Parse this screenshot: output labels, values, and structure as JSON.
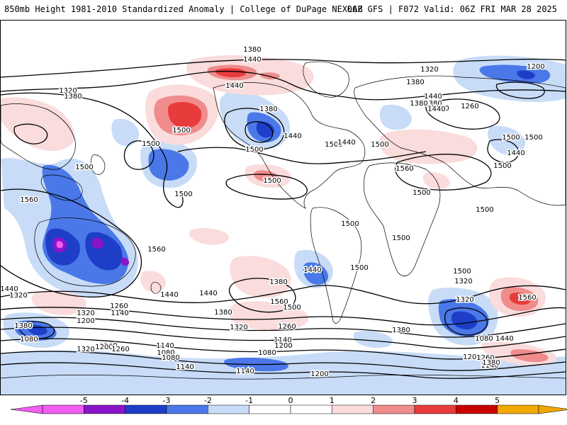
{
  "header": {
    "title_left": "850mb Height 1981-2010 Standardized Anomaly | College of DuPage NEXLAB",
    "title_right": "06Z GFS | F072 Valid: 06Z FRI MAR 28 2025"
  },
  "colors": {
    "neg5": "#f05ef0",
    "neg4": "#8a14c8",
    "neg3": "#1e3ec8",
    "neg2": "#4a78e8",
    "neg1": "#c8dcf8",
    "pos1": "#fadcdc",
    "pos2": "#f08c8c",
    "pos3": "#e83c3c",
    "pos4": "#c80000",
    "pos5": "#f0a800"
  },
  "colorbar": {
    "ticks": [
      "-5",
      "-4",
      "-3",
      "-2",
      "-1",
      "0",
      "1",
      "2",
      "3",
      "4",
      "5"
    ]
  },
  "contour_labels": [
    "1380",
    "1440",
    "1320",
    "1200",
    "1320",
    "1380",
    "1440",
    "1380",
    "1440",
    "1380",
    "1320",
    "1380",
    "1440",
    "1260",
    "1500",
    "1500",
    "1500",
    "1440",
    "1500",
    "1380",
    "1440",
    "1500",
    "1500",
    "1560",
    "1500",
    "1440",
    "1500",
    "1500",
    "1560",
    "1500",
    "1500",
    "1500",
    "1500",
    "1500",
    "1560",
    "1500",
    "1500",
    "1440",
    "1380",
    "1560",
    "1440",
    "1440",
    "1500",
    "1500",
    "1380",
    "1560",
    "1440",
    "1320",
    "1320",
    "1260",
    "1140",
    "1200",
    "1380",
    "1260",
    "1320",
    "1380",
    "1140",
    "1200",
    "1080",
    "1080",
    "1260",
    "1200",
    "1320",
    "1080",
    "1320",
    "1260",
    "1140",
    "1080",
    "1140",
    "1200",
    "1140",
    "1080",
    "1200",
    "1140",
    "1260",
    "1320",
    "1380",
    "1440"
  ]
}
